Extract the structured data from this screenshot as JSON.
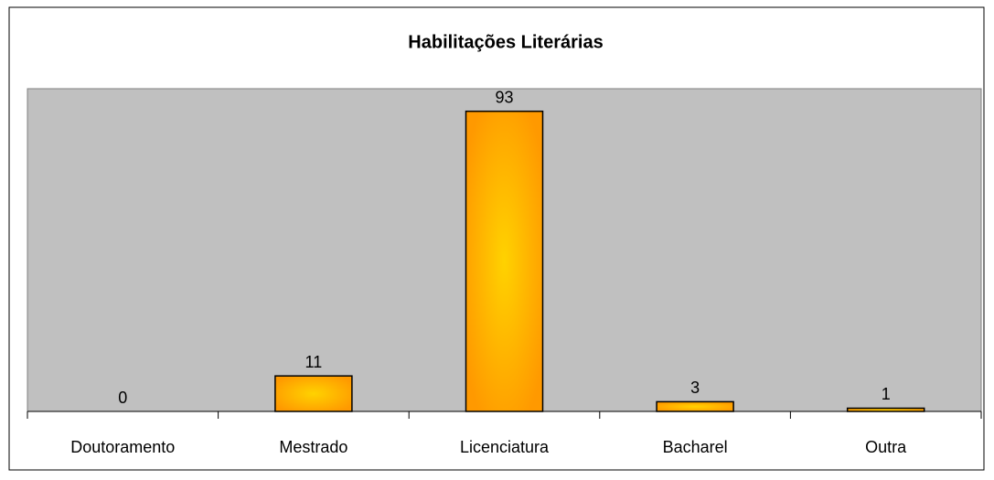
{
  "chart_data": {
    "type": "bar",
    "title": "Habilitações Literárias",
    "categories": [
      "Doutoramento",
      "Mestrado",
      "Licenciatura",
      "Bacharel",
      "Outra"
    ],
    "values": [
      0,
      11,
      93,
      3,
      1
    ],
    "color": "#ff9900",
    "ylim": [
      0,
      100
    ],
    "grid": false
  }
}
